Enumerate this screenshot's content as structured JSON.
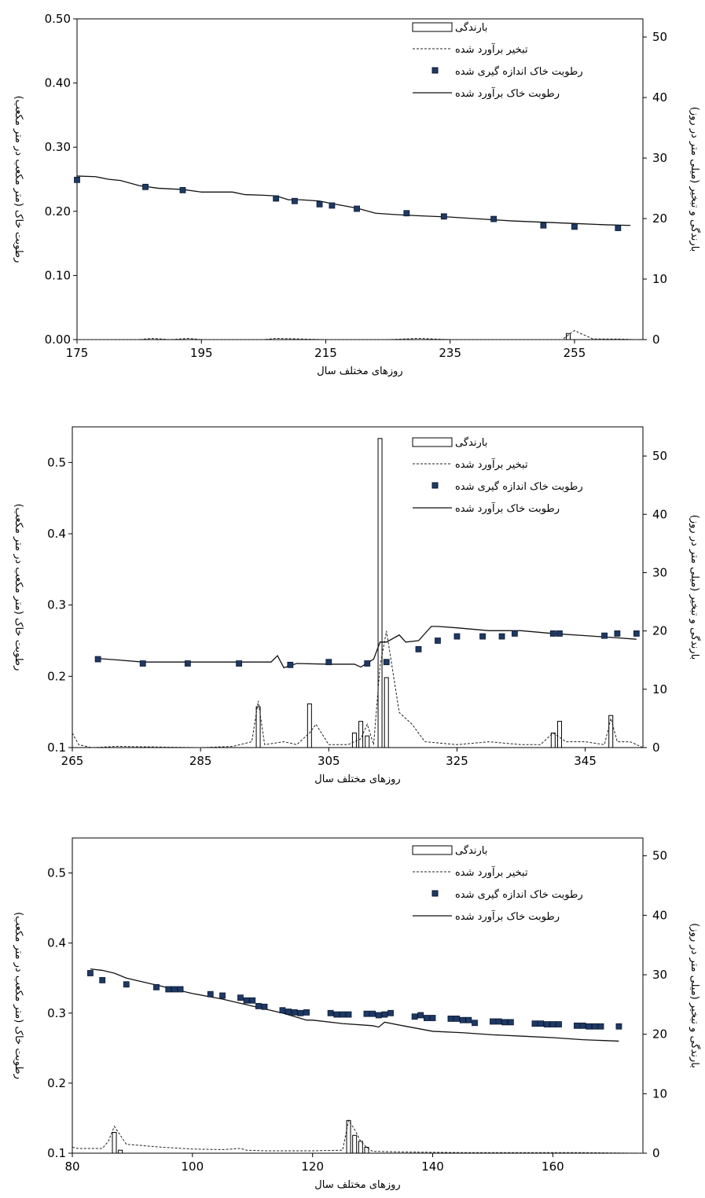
{
  "chart_data": [
    {
      "type": "bar",
      "xlabel": "روزهای مختلف سال",
      "ylabel": "رطوبت خاک (متر مکعب در متر مکعب)",
      "y2label": "بارندگی و تبخیر (میلی متر در روز)",
      "xlim": [
        175,
        266
      ],
      "xticks": [
        "175",
        "195",
        "215",
        "235",
        "255"
      ],
      "ylim": [
        0,
        0.5
      ],
      "yticks": [
        "0.00",
        "0.10",
        "0.20",
        "0.30",
        "0.40",
        "0.50"
      ],
      "y2lim": [
        0,
        53
      ],
      "y2ticks": [
        "0",
        "10",
        "20",
        "30",
        "40",
        "50"
      ],
      "legend_position": "top-right",
      "legend": [
        "بارندگی",
        "تبخیر برآورد شده",
        "رطوبت خاک اندازه گیری شده",
        "رطوبت خاک برآورد شده"
      ],
      "series": [
        {
          "name": "بارندگی",
          "kind": "bar",
          "x": [
            254
          ],
          "values": [
            1
          ]
        },
        {
          "name": "تبخیر برآورد شده",
          "kind": "dashed-line",
          "x": [
            175,
            185,
            187,
            190,
            193,
            195,
            205,
            207,
            215,
            225,
            230,
            235,
            245,
            253,
            255,
            256,
            258,
            262,
            265
          ],
          "values": [
            0,
            0,
            0.2,
            0,
            0.2,
            0,
            0,
            0.2,
            0,
            0,
            0.2,
            0,
            0,
            0,
            1.5,
            1,
            0.1,
            0.1,
            0
          ]
        },
        {
          "name": "رطوبت خاک اندازه گیری شده",
          "kind": "points",
          "x": [
            175,
            186,
            192,
            207,
            210,
            214,
            216,
            220,
            228,
            234,
            242,
            250,
            255,
            262
          ],
          "values": [
            0.249,
            0.238,
            0.233,
            0.22,
            0.216,
            0.211,
            0.209,
            0.204,
            0.197,
            0.192,
            0.188,
            0.178,
            0.176,
            0.174
          ]
        },
        {
          "name": "رطوبت خاک برآورد شده",
          "kind": "line",
          "x": [
            175,
            178,
            180,
            182,
            185,
            188,
            192,
            195,
            200,
            202,
            205,
            207,
            209,
            211,
            214,
            216,
            220,
            223,
            226,
            230,
            235,
            240,
            245,
            250,
            255,
            260,
            264
          ],
          "values": [
            0.255,
            0.254,
            0.25,
            0.248,
            0.24,
            0.236,
            0.234,
            0.23,
            0.23,
            0.226,
            0.225,
            0.224,
            0.218,
            0.218,
            0.216,
            0.212,
            0.205,
            0.197,
            0.195,
            0.193,
            0.191,
            0.188,
            0.185,
            0.183,
            0.181,
            0.179,
            0.178
          ]
        }
      ]
    },
    {
      "type": "bar",
      "xlabel": "روزهای مختلف سال",
      "ylabel": "رطوبت خاک (متر مکعب در متر مکعب)",
      "y2label": "بارندگی و تبخیر (میلی متر در روز)",
      "xlim": [
        265,
        354
      ],
      "xticks": [
        "265",
        "285",
        "305",
        "325",
        "345"
      ],
      "ylim": [
        0.1,
        0.55
      ],
      "yticks": [
        "0.1",
        "0.2",
        "0.3",
        "0.4",
        "0.5"
      ],
      "y2lim": [
        0,
        55
      ],
      "y2ticks": [
        "0",
        "10",
        "20",
        "30",
        "40",
        "50"
      ],
      "legend_position": "top-right",
      "legend": [
        "بارندگی",
        "تبخیر برآورد شده",
        "رطوبت خاک اندازه گیری شده",
        "رطوبت خاک برآورد شده"
      ],
      "series": [
        {
          "name": "بارندگی",
          "kind": "bar",
          "x": [
            294,
            302,
            309,
            310,
            311,
            313,
            314,
            340,
            341,
            349
          ],
          "values": [
            7,
            7.5,
            2.5,
            4.5,
            2,
            53,
            12,
            2.5,
            4.5,
            5.5
          ]
        },
        {
          "name": "تبخیر برآورد شده",
          "kind": "dashed-line",
          "x": [
            265,
            266,
            268,
            272,
            285,
            290,
            293,
            294,
            295,
            298,
            300,
            302,
            303,
            305,
            308,
            310,
            311,
            312,
            313,
            314,
            316,
            318,
            320,
            325,
            330,
            335,
            338,
            340,
            342,
            345,
            348,
            349,
            350,
            352,
            354
          ],
          "values": [
            2.5,
            0.5,
            0,
            0.2,
            0,
            0.2,
            1,
            8,
            0.5,
            1,
            0.5,
            2.5,
            4,
            0.5,
            0.5,
            1.5,
            4,
            0.5,
            14,
            20,
            6,
            4,
            1,
            0.5,
            1,
            0.5,
            0.5,
            2.5,
            1,
            1,
            0.5,
            5,
            1,
            1,
            0
          ]
        },
        {
          "name": "رطوبت خاک اندازه گیری شده",
          "kind": "points",
          "x": [
            269,
            276,
            283,
            291,
            299,
            305,
            311,
            314,
            319,
            322,
            325,
            329,
            332,
            334,
            340,
            341,
            348,
            350,
            353
          ],
          "values": [
            0.224,
            0.218,
            0.218,
            0.218,
            0.216,
            0.22,
            0.218,
            0.22,
            0.238,
            0.25,
            0.256,
            0.256,
            0.256,
            0.26,
            0.26,
            0.26,
            0.257,
            0.26,
            0.26
          ]
        },
        {
          "name": "رطوبت خاک برآورد شده",
          "kind": "line",
          "x": [
            269,
            272,
            276,
            283,
            291,
            296,
            297,
            298,
            300,
            305,
            309,
            310,
            312,
            313,
            314,
            316,
            317,
            319,
            321,
            322,
            325,
            330,
            335,
            340,
            345,
            350,
            353
          ],
          "values": [
            0.225,
            0.223,
            0.22,
            0.22,
            0.22,
            0.22,
            0.229,
            0.212,
            0.218,
            0.217,
            0.217,
            0.213,
            0.224,
            0.248,
            0.248,
            0.258,
            0.248,
            0.25,
            0.27,
            0.27,
            0.268,
            0.264,
            0.264,
            0.26,
            0.257,
            0.254,
            0.252
          ]
        }
      ]
    },
    {
      "type": "bar",
      "xlabel": "روزهای مختلف سال",
      "ylabel": "رطوبت خاک (متر مکعب در متر مکعب)",
      "y2label": "بارندگی و تبخیر (میلی متر در روز)",
      "xlim": [
        80,
        175
      ],
      "xticks": [
        "80",
        "100",
        "120",
        "140",
        "160"
      ],
      "ylim": [
        0.1,
        0.55
      ],
      "yticks": [
        "0.1",
        "0.2",
        "0.3",
        "0.4",
        "0.5"
      ],
      "y2lim": [
        0,
        53
      ],
      "y2ticks": [
        "0",
        "10",
        "20",
        "30",
        "40",
        "50"
      ],
      "legend_position": "top-right",
      "legend": [
        "بارندگی",
        "تبخیر برآورد شده",
        "رطوبت خاک اندازه گیری شده",
        "رطوبت خاک برآورد شده"
      ],
      "series": [
        {
          "name": "بارندگی",
          "kind": "bar",
          "x": [
            87,
            88,
            126,
            127,
            128,
            129
          ],
          "values": [
            3.5,
            0.5,
            5.5,
            3,
            2,
            1
          ]
        },
        {
          "name": "تبخیر برآورد شده",
          "kind": "dashed-line",
          "x": [
            80,
            81,
            85,
            86,
            87,
            88,
            89,
            95,
            100,
            105,
            108,
            109,
            112,
            120,
            125,
            126,
            127,
            128,
            129,
            130,
            135,
            145,
            155,
            165,
            175
          ],
          "values": [
            1,
            0.8,
            0.8,
            2,
            4.5,
            3,
            1.5,
            1,
            0.7,
            0.6,
            0.8,
            0.5,
            0.4,
            0.4,
            0.5,
            5.5,
            4,
            2,
            1,
            0.3,
            0.2,
            0.1,
            0.1,
            0.1,
            0
          ]
        },
        {
          "name": "رطوبت خاک اندازه گیری شده",
          "kind": "points",
          "x": [
            83,
            85,
            89,
            94,
            96,
            97,
            98,
            103,
            105,
            108,
            109,
            110,
            111,
            112,
            115,
            116,
            117,
            118,
            119,
            123,
            124,
            125,
            126,
            129,
            130,
            131,
            132,
            133,
            137,
            138,
            139,
            140,
            143,
            144,
            145,
            146,
            147,
            150,
            151,
            152,
            153,
            157,
            158,
            159,
            160,
            161,
            164,
            165,
            166,
            167,
            168,
            171
          ],
          "values": [
            0.357,
            0.347,
            0.341,
            0.337,
            0.334,
            0.334,
            0.334,
            0.327,
            0.325,
            0.322,
            0.318,
            0.318,
            0.31,
            0.309,
            0.304,
            0.302,
            0.301,
            0.3,
            0.301,
            0.3,
            0.298,
            0.298,
            0.298,
            0.299,
            0.299,
            0.297,
            0.298,
            0.3,
            0.295,
            0.297,
            0.293,
            0.293,
            0.292,
            0.292,
            0.29,
            0.29,
            0.286,
            0.288,
            0.288,
            0.287,
            0.287,
            0.285,
            0.285,
            0.284,
            0.284,
            0.284,
            0.282,
            0.282,
            0.281,
            0.281,
            0.281,
            0.281
          ]
        },
        {
          "name": "رطوبت خاک برآورد شده",
          "kind": "line",
          "x": [
            83,
            85,
            87,
            89,
            95,
            100,
            105,
            110,
            115,
            119,
            120,
            125,
            130,
            131,
            132,
            135,
            140,
            145,
            150,
            155,
            160,
            165,
            171
          ],
          "values": [
            0.363,
            0.361,
            0.357,
            0.35,
            0.338,
            0.328,
            0.32,
            0.31,
            0.3,
            0.29,
            0.29,
            0.285,
            0.282,
            0.28,
            0.287,
            0.282,
            0.274,
            0.272,
            0.269,
            0.267,
            0.265,
            0.262,
            0.26
          ]
        }
      ]
    }
  ]
}
